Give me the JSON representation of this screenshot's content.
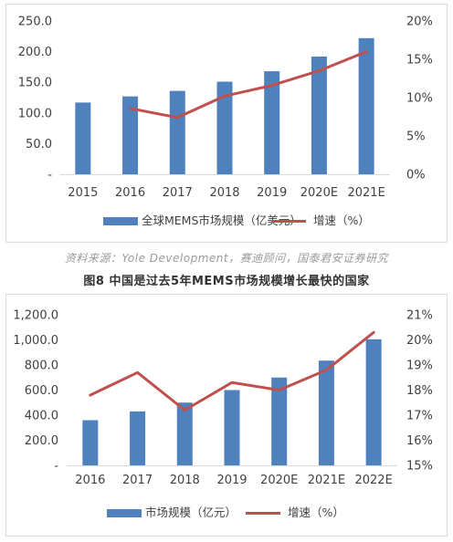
{
  "chart_data": [
    {
      "type": "bar",
      "categories": [
        "2015",
        "2016",
        "2017",
        "2018",
        "2019",
        "2020E",
        "2021E"
      ],
      "series": [
        {
          "name": "全球MEMS市场规模（亿美元）",
          "type": "bar",
          "axis": "left",
          "color": "#4f81bd",
          "values": [
            117,
            127,
            136,
            151,
            168,
            192,
            222
          ]
        },
        {
          "name": "增速（%）",
          "type": "line",
          "axis": "right",
          "color": "#c0504d",
          "values": [
            null,
            8.6,
            7.4,
            10.2,
            11.6,
            13.5,
            16.0
          ]
        }
      ],
      "y_left": {
        "ylim": [
          0,
          250
        ],
        "ticks": [
          "-",
          "50.0",
          "100.0",
          "150.0",
          "200.0",
          "250.0"
        ]
      },
      "y_right": {
        "ylim": [
          0,
          20
        ],
        "ticks": [
          "0%",
          "5%",
          "10%",
          "15%",
          "20%"
        ]
      },
      "legend": "bottom",
      "grid": false
    },
    {
      "type": "bar",
      "categories": [
        "2016",
        "2017",
        "2018",
        "2019",
        "2020E",
        "2021E",
        "2022E"
      ],
      "series": [
        {
          "name": "市场规模（亿元）",
          "type": "bar",
          "axis": "left",
          "color": "#4f81bd",
          "values": [
            360,
            430,
            500,
            600,
            700,
            835,
            1005
          ]
        },
        {
          "name": "增速（%）",
          "type": "line",
          "axis": "right",
          "color": "#c0504d",
          "values": [
            17.8,
            18.7,
            17.2,
            18.3,
            18.0,
            18.8,
            20.3
          ]
        }
      ],
      "y_left": {
        "ylim": [
          0,
          1200
        ],
        "ticks": [
          "-",
          "200.0",
          "400.0",
          "600.0",
          "800.0",
          "1,000.0",
          "1,200.0"
        ]
      },
      "y_right": {
        "ylim": [
          15,
          21
        ],
        "ticks": [
          "15%",
          "16%",
          "17%",
          "18%",
          "19%",
          "20%",
          "21%"
        ]
      },
      "legend": "bottom",
      "grid": false
    }
  ],
  "source_note": "资料来源：Yole Development，赛迪顾问，国泰君安证券研究",
  "figure_caption": "图8  中国是过去5年MEMS市场规模增长最快的国家"
}
